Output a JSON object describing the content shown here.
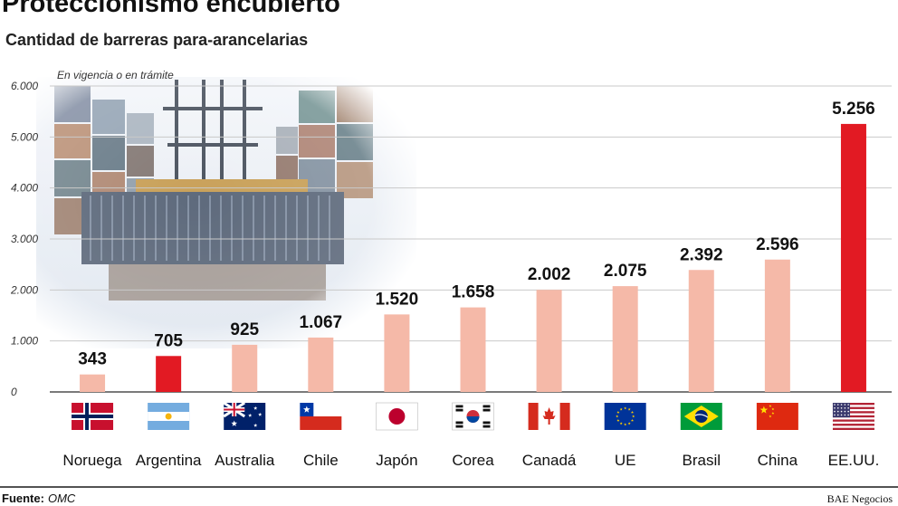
{
  "title": "Proteccionismo encubierto",
  "subtitle": "Cantidad de barreras para-arancelarias",
  "note": "En vigencia o en trámite",
  "source_label": "Fuente:",
  "source_value": "OMC",
  "credit": "BAE Negocios",
  "colors": {
    "highlight": "#e21a23",
    "normal": "#f5b9a8",
    "grid": "#c9c9c9",
    "baseline": "#2a2a2a"
  },
  "chart_data": {
    "type": "bar",
    "title": "Proteccionismo encubierto",
    "subtitle": "Cantidad de barreras para-arancelarias",
    "ylim": [
      0,
      6000
    ],
    "yticks": [
      "0",
      "1.000",
      "2.000",
      "3.000",
      "4.000",
      "5.000",
      "6.000"
    ],
    "ytick_values": [
      0,
      1000,
      2000,
      3000,
      4000,
      5000,
      6000
    ],
    "grid": true,
    "categories": [
      "Noruega",
      "Argentina",
      "Australia",
      "Chile",
      "Japón",
      "Corea",
      "Canadá",
      "UE",
      "Brasil",
      "China",
      "EE.UU."
    ],
    "values": [
      343,
      705,
      925,
      1067,
      1520,
      1658,
      2002,
      2075,
      2392,
      2596,
      5256
    ],
    "value_labels": [
      "343",
      "705",
      "925",
      "1.067",
      "1.520",
      "1.658",
      "2.002",
      "2.075",
      "2.392",
      "2.596",
      "5.256"
    ],
    "highlighted": [
      "Argentina",
      "EE.UU."
    ],
    "flags": [
      "norway-flag-icon",
      "argentina-flag-icon",
      "australia-flag-icon",
      "chile-flag-icon",
      "japan-flag-icon",
      "korea-flag-icon",
      "canada-flag-icon",
      "eu-flag-icon",
      "brazil-flag-icon",
      "china-flag-icon",
      "usa-flag-icon"
    ]
  }
}
